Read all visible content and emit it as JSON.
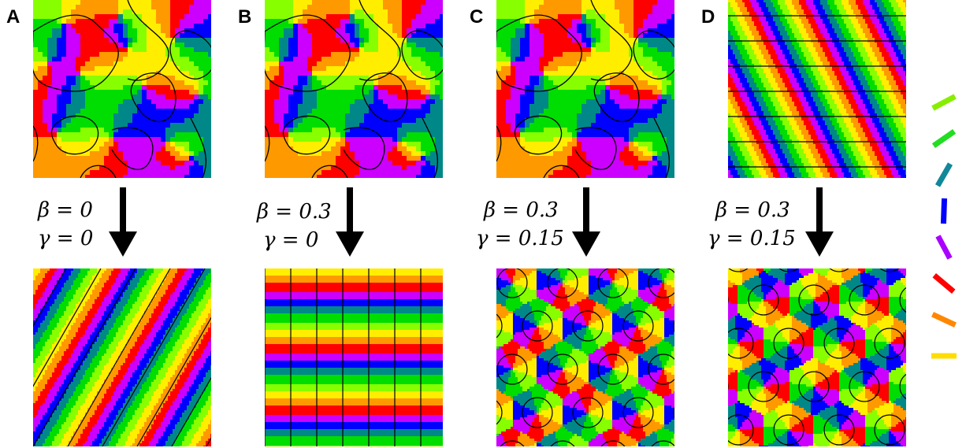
{
  "panels": [
    {
      "letter": "A",
      "beta": "β = 0",
      "gamma": "γ = 0",
      "bottom_type": "stripes-diagonal"
    },
    {
      "letter": "B",
      "beta": "β = 0.3",
      "gamma": "γ = 0",
      "bottom_type": "stripes-horizontal"
    },
    {
      "letter": "C",
      "beta": "β = 0.3",
      "gamma": "γ = 0.15",
      "bottom_type": "pinwheel-hexagonal"
    },
    {
      "letter": "D",
      "beta": "β = 0.3",
      "gamma": "γ = 0.15",
      "bottom_type": "pinwheel-hexagonal-alt"
    }
  ],
  "colors": {
    "hue_cycle": [
      "#ffee00",
      "#ff9900",
      "#ff0000",
      "#cc00ff",
      "#0000ff",
      "#008888",
      "#00dd00",
      "#88ff00"
    ],
    "contour": "#000000",
    "arrow": "#000000"
  },
  "orientation_legend": [
    {
      "color": "#88ee00",
      "angle": "tilted-left-steep"
    },
    {
      "color": "#22dd22",
      "angle": "tilted-left"
    },
    {
      "color": "#118899",
      "angle": "tilted-left-slight"
    },
    {
      "color": "#0000ff",
      "angle": "vertical"
    },
    {
      "color": "#aa00ff",
      "angle": "tilted-right-slight"
    },
    {
      "color": "#ff0000",
      "angle": "tilted-right"
    },
    {
      "color": "#ff8800",
      "angle": "tilted-right-steep"
    },
    {
      "color": "#ffdd00",
      "angle": "horizontal"
    }
  ]
}
